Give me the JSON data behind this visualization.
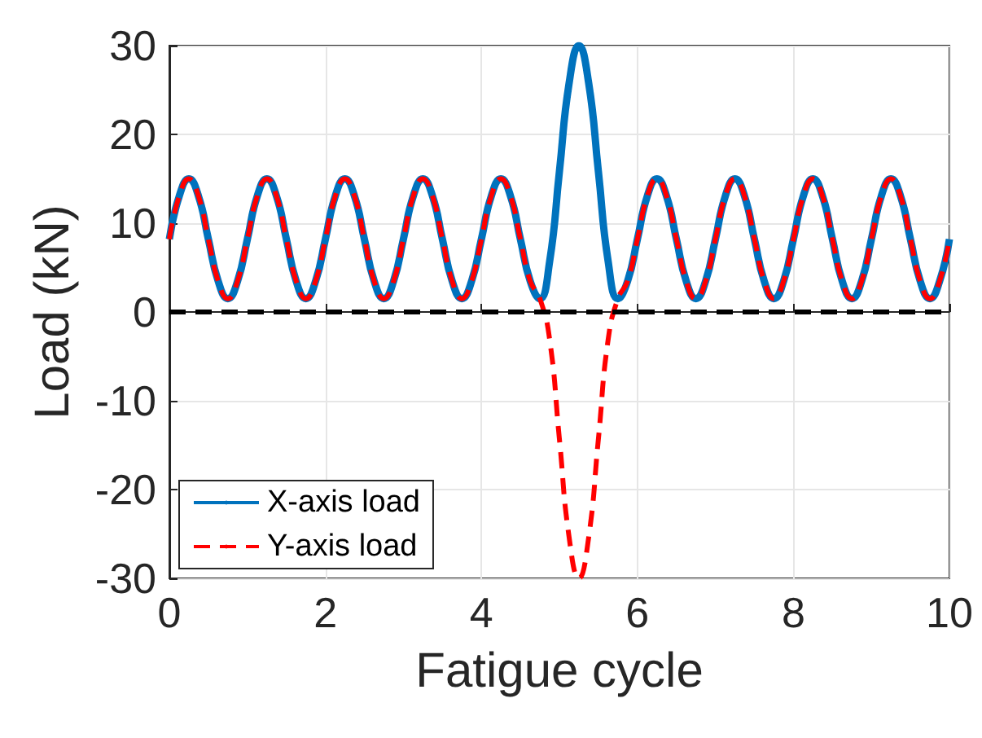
{
  "chart_data": {
    "type": "line",
    "xlabel": "Fatigue cycle",
    "ylabel": "Load (kN)",
    "x": [
      0,
      0.125,
      0.25,
      0.375,
      0.5,
      0.625,
      0.75,
      0.875,
      1,
      1.125,
      1.25,
      1.375,
      1.5,
      1.625,
      1.75,
      1.875,
      2,
      2.125,
      2.25,
      2.375,
      2.5,
      2.625,
      2.75,
      2.875,
      3,
      3.125,
      3.25,
      3.375,
      3.5,
      3.625,
      3.75,
      3.875,
      4,
      4.125,
      4.25,
      4.375,
      4.5,
      4.625,
      4.75,
      4.875,
      5,
      5.125,
      5.25,
      5.375,
      5.5,
      5.625,
      5.75,
      5.875,
      6,
      6.125,
      6.25,
      6.375,
      6.5,
      6.625,
      6.75,
      6.875,
      7,
      7.125,
      7.25,
      7.375,
      7.5,
      7.625,
      7.75,
      7.875,
      8,
      8.125,
      8.25,
      8.375,
      8.5,
      8.625,
      8.75,
      8.875,
      9,
      9.125,
      9.25,
      9.375,
      9.5,
      9.625,
      9.75,
      9.875,
      10
    ],
    "series": [
      {
        "name": "X-axis load",
        "color": "#0072bd",
        "line_style": "solid",
        "values": [
          8.2,
          13,
          15,
          13,
          8.2,
          3.5,
          1.5,
          3.5,
          8.2,
          13,
          15,
          13,
          8.2,
          3.5,
          1.5,
          3.5,
          8.2,
          13,
          15,
          13,
          8.2,
          3.5,
          1.5,
          3.5,
          8.2,
          13,
          15,
          13,
          8.2,
          3.5,
          1.5,
          3.5,
          8.2,
          13,
          15,
          13,
          8.2,
          3.5,
          1.5,
          5.7,
          15.8,
          25.8,
          30,
          25.8,
          15.8,
          5.7,
          1.5,
          3.5,
          8.2,
          13,
          15,
          13,
          8.2,
          3.5,
          1.5,
          3.5,
          8.2,
          13,
          15,
          13,
          8.2,
          3.5,
          1.5,
          3.5,
          8.2,
          13,
          15,
          13,
          8.2,
          3.5,
          1.5,
          3.5,
          8.2,
          13,
          15,
          13,
          8.2,
          3.5,
          1.5,
          3.5,
          8.2
        ]
      },
      {
        "name": "Y-axis load",
        "color": "#ff0000",
        "line_style": "dashed",
        "values": [
          8.2,
          13,
          15,
          13,
          8.2,
          3.5,
          1.5,
          3.5,
          8.2,
          13,
          15,
          13,
          8.2,
          3.5,
          1.5,
          3.5,
          8.2,
          13,
          15,
          13,
          8.2,
          3.5,
          1.5,
          3.5,
          8.2,
          13,
          15,
          13,
          8.2,
          3.5,
          1.5,
          3.5,
          8.2,
          13,
          15,
          13,
          8.2,
          3.5,
          1.5,
          -3.1,
          -14.3,
          -25.4,
          -30,
          -25.4,
          -14.3,
          -3.1,
          1.5,
          3.5,
          8.2,
          13,
          15,
          13,
          8.2,
          3.5,
          1.5,
          3.5,
          8.2,
          13,
          15,
          13,
          8.2,
          3.5,
          1.5,
          3.5,
          8.2,
          13,
          15,
          13,
          8.2,
          3.5,
          1.5,
          3.5,
          8.2,
          13,
          15,
          13,
          8.2,
          3.5,
          1.5,
          3.5,
          8.2
        ]
      }
    ],
    "xlim": [
      0,
      10
    ],
    "xticks": [
      0,
      2,
      4,
      6,
      8,
      10
    ],
    "ylim": [
      -30,
      30
    ],
    "yticks": [
      -30,
      -20,
      -10,
      0,
      10,
      20,
      30
    ],
    "ref_lines": [
      {
        "axis": "y",
        "value": 0,
        "color": "#000000",
        "line_style": "dashed"
      }
    ],
    "grid": true,
    "legend": "bottom left",
    "marker": "none"
  }
}
